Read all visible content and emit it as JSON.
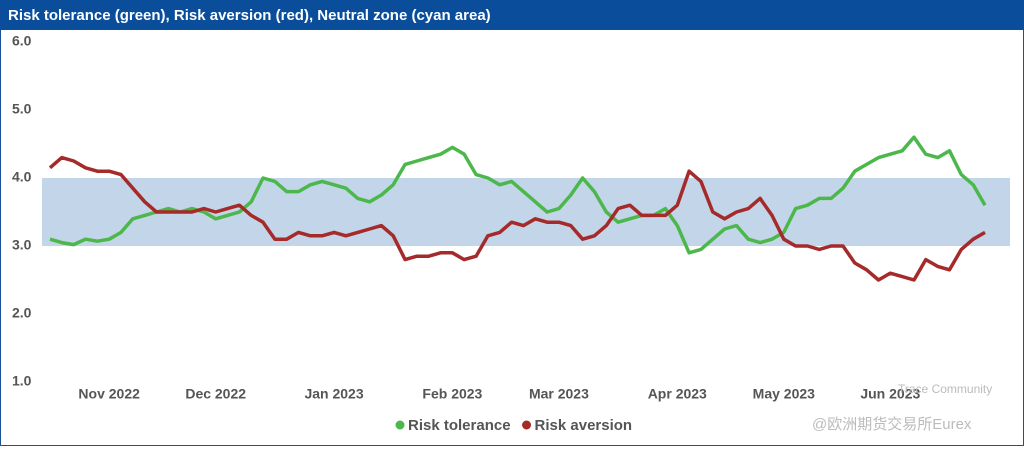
{
  "chart_data": {
    "type": "line",
    "title": "Risk tolerance (green), Risk aversion (red), Neutral zone (cyan area)",
    "categories": [
      null,
      null,
      null,
      null,
      null,
      "Nov 2022",
      null,
      null,
      null,
      null,
      null,
      null,
      null,
      null,
      "Dec 2022",
      null,
      null,
      null,
      null,
      null,
      null,
      null,
      null,
      null,
      "Jan 2023",
      null,
      null,
      null,
      null,
      null,
      null,
      null,
      null,
      null,
      "Feb 2023",
      null,
      null,
      null,
      null,
      null,
      null,
      null,
      null,
      "Mar 2023",
      null,
      null,
      null,
      null,
      null,
      null,
      null,
      null,
      null,
      "Apr 2023",
      null,
      null,
      null,
      null,
      null,
      null,
      null,
      null,
      "May 2023",
      null,
      null,
      null,
      null,
      null,
      null,
      null,
      null,
      "Jun 2023",
      null,
      null,
      null,
      null,
      null,
      null,
      null,
      null
    ],
    "series": [
      {
        "name": "Risk tolerance",
        "color": "#4cb84c",
        "values": [
          3.1,
          3.05,
          3.02,
          3.1,
          3.07,
          3.1,
          3.2,
          3.4,
          3.45,
          3.5,
          3.55,
          3.5,
          3.55,
          3.5,
          3.4,
          3.45,
          3.5,
          3.65,
          4.0,
          3.95,
          3.8,
          3.8,
          3.9,
          3.95,
          3.9,
          3.85,
          3.7,
          3.65,
          3.75,
          3.9,
          4.2,
          4.25,
          4.3,
          4.35,
          4.45,
          4.35,
          4.05,
          4.0,
          3.9,
          3.95,
          3.8,
          3.65,
          3.5,
          3.55,
          3.75,
          4.0,
          3.8,
          3.5,
          3.35,
          3.4,
          3.45,
          3.45,
          3.55,
          3.3,
          2.9,
          2.95,
          3.1,
          3.25,
          3.3,
          3.1,
          3.05,
          3.1,
          3.2,
          3.55,
          3.6,
          3.7,
          3.7,
          3.85,
          4.1,
          4.2,
          4.3,
          4.35,
          4.4,
          4.6,
          4.35,
          4.3,
          4.4,
          4.05,
          3.9,
          3.6
        ]
      },
      {
        "name": "Risk aversion",
        "color": "#a52a2a",
        "values": [
          4.15,
          4.3,
          4.25,
          4.15,
          4.1,
          4.1,
          4.05,
          3.85,
          3.65,
          3.5,
          3.5,
          3.5,
          3.5,
          3.55,
          3.5,
          3.55,
          3.6,
          3.45,
          3.35,
          3.1,
          3.1,
          3.2,
          3.15,
          3.15,
          3.2,
          3.15,
          3.2,
          3.25,
          3.3,
          3.15,
          2.8,
          2.85,
          2.85,
          2.9,
          2.9,
          2.8,
          2.85,
          3.15,
          3.2,
          3.35,
          3.3,
          3.4,
          3.35,
          3.35,
          3.3,
          3.1,
          3.15,
          3.3,
          3.55,
          3.6,
          3.45,
          3.45,
          3.45,
          3.6,
          4.1,
          3.95,
          3.5,
          3.4,
          3.5,
          3.55,
          3.7,
          3.45,
          3.1,
          3.0,
          3.0,
          2.95,
          3.0,
          3.0,
          2.75,
          2.65,
          2.5,
          2.6,
          2.55,
          2.5,
          2.8,
          2.7,
          2.65,
          2.95,
          3.1,
          3.2
        ]
      }
    ],
    "neutral_zone": {
      "from": 3,
      "to": 4,
      "color": "#c3d5e8"
    },
    "ylim": [
      1,
      6
    ],
    "yticks": [
      {
        "value": 1,
        "label": "1.0"
      },
      {
        "value": 2,
        "label": "2.0"
      },
      {
        "value": 3,
        "label": "3.0"
      },
      {
        "value": 4,
        "label": "4.0"
      },
      {
        "value": 5,
        "label": "5.0"
      },
      {
        "value": 6,
        "label": "6.0"
      }
    ],
    "grid": false,
    "legend": "bottom",
    "watermark": [
      "Trace Community",
      "@欧洲期货交易所Eurex"
    ]
  }
}
